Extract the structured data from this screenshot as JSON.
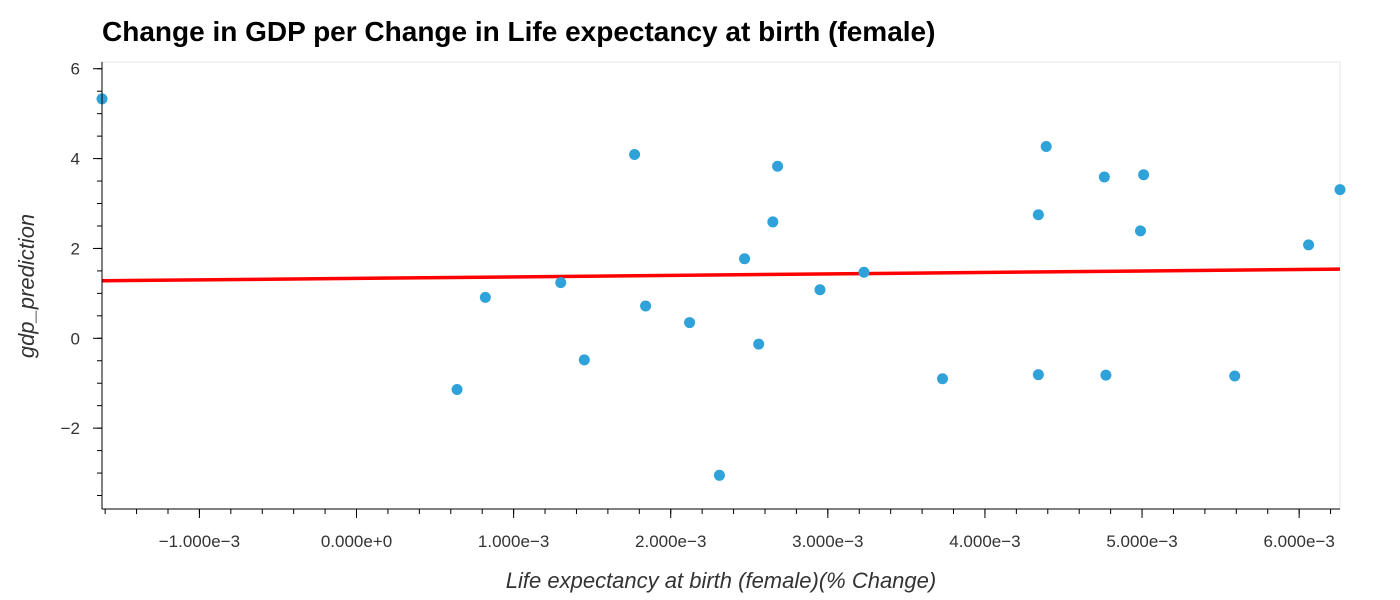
{
  "chart_data": {
    "type": "scatter",
    "title": "Change in GDP per Change in Life expectancy at birth (female)",
    "xlabel": "Life expectancy at birth (female)(% Change)",
    "ylabel": "gdp_prediction",
    "xlim": [
      -0.00162,
      0.00626
    ],
    "ylim": [
      -3.8,
      6.15
    ],
    "x_ticks": [
      -0.001,
      0.0,
      0.001,
      0.002,
      0.003,
      0.004,
      0.005,
      0.006
    ],
    "x_tick_labels": [
      "−1.000e−3",
      "0.000e+0",
      "1.000e−3",
      "2.000e−3",
      "3.000e−3",
      "4.000e−3",
      "5.000e−3",
      "6.000e−3"
    ],
    "y_ticks": [
      -2,
      0,
      2,
      4,
      6
    ],
    "y_tick_labels": [
      "−2",
      "0",
      "2",
      "4",
      "6"
    ],
    "grid": false,
    "point_color": "#30a2da",
    "line_color": "#ff0000",
    "points": [
      {
        "x": -0.00162,
        "y": 5.33
      },
      {
        "x": 0.00064,
        "y": -1.14
      },
      {
        "x": 0.00082,
        "y": 0.91
      },
      {
        "x": 0.0013,
        "y": 1.24
      },
      {
        "x": 0.00145,
        "y": -0.48
      },
      {
        "x": 0.00177,
        "y": 4.09
      },
      {
        "x": 0.00184,
        "y": 0.72
      },
      {
        "x": 0.00212,
        "y": 0.35
      },
      {
        "x": 0.00231,
        "y": -3.05
      },
      {
        "x": 0.00247,
        "y": 1.77
      },
      {
        "x": 0.00256,
        "y": -0.13
      },
      {
        "x": 0.00265,
        "y": 2.59
      },
      {
        "x": 0.00268,
        "y": 3.83
      },
      {
        "x": 0.00295,
        "y": 1.08
      },
      {
        "x": 0.00323,
        "y": 1.47
      },
      {
        "x": 0.00373,
        "y": -0.9
      },
      {
        "x": 0.00434,
        "y": 2.75
      },
      {
        "x": 0.00434,
        "y": -0.81
      },
      {
        "x": 0.00439,
        "y": 4.27
      },
      {
        "x": 0.00476,
        "y": 3.59
      },
      {
        "x": 0.00477,
        "y": -0.82
      },
      {
        "x": 0.00499,
        "y": 2.39
      },
      {
        "x": 0.00501,
        "y": 3.64
      },
      {
        "x": 0.00559,
        "y": -0.84
      },
      {
        "x": 0.00606,
        "y": 2.08
      },
      {
        "x": 0.00626,
        "y": 3.31
      }
    ],
    "regression_line": {
      "x": [
        -0.00162,
        0.00626
      ],
      "y": [
        1.28,
        1.54
      ]
    }
  }
}
